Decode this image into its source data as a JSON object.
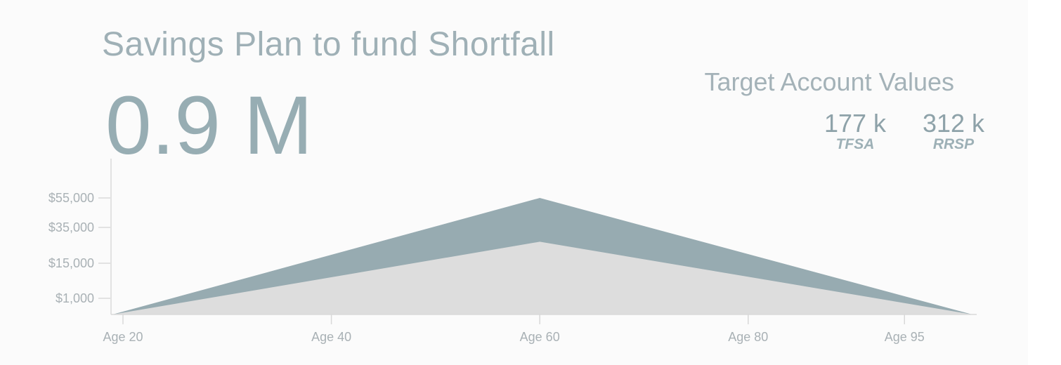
{
  "title": "Savings Plan to fund Shortfall",
  "big_value": "0.9 M",
  "targets": {
    "title": "Target Account Values",
    "items": [
      {
        "value": "177 k",
        "label": "TFSA"
      },
      {
        "value": "312 k",
        "label": "RRSP"
      }
    ]
  },
  "colors": {
    "upper_area": "#97abb1",
    "lower_area": "#dddddd",
    "axis": "#d9d9d9"
  },
  "chart_data": {
    "type": "area",
    "x_tick_labels": [
      "Age 20",
      "Age 40",
      "Age 60",
      "Age 80",
      "Age 95"
    ],
    "x_tick_values": [
      20,
      40,
      60,
      80,
      95
    ],
    "y_tick_labels": [
      "$1,000",
      "$15,000",
      "$35,000",
      "$55,000"
    ],
    "y_tick_values": [
      1000,
      15000,
      35000,
      55000
    ],
    "series": [
      {
        "x": [
          19,
          60,
          101.5
        ],
        "values": [
          0,
          27000,
          0
        ]
      },
      {
        "x": [
          19,
          60,
          101.5
        ],
        "values": [
          0,
          55000,
          0
        ]
      }
    ],
    "grid": false
  }
}
